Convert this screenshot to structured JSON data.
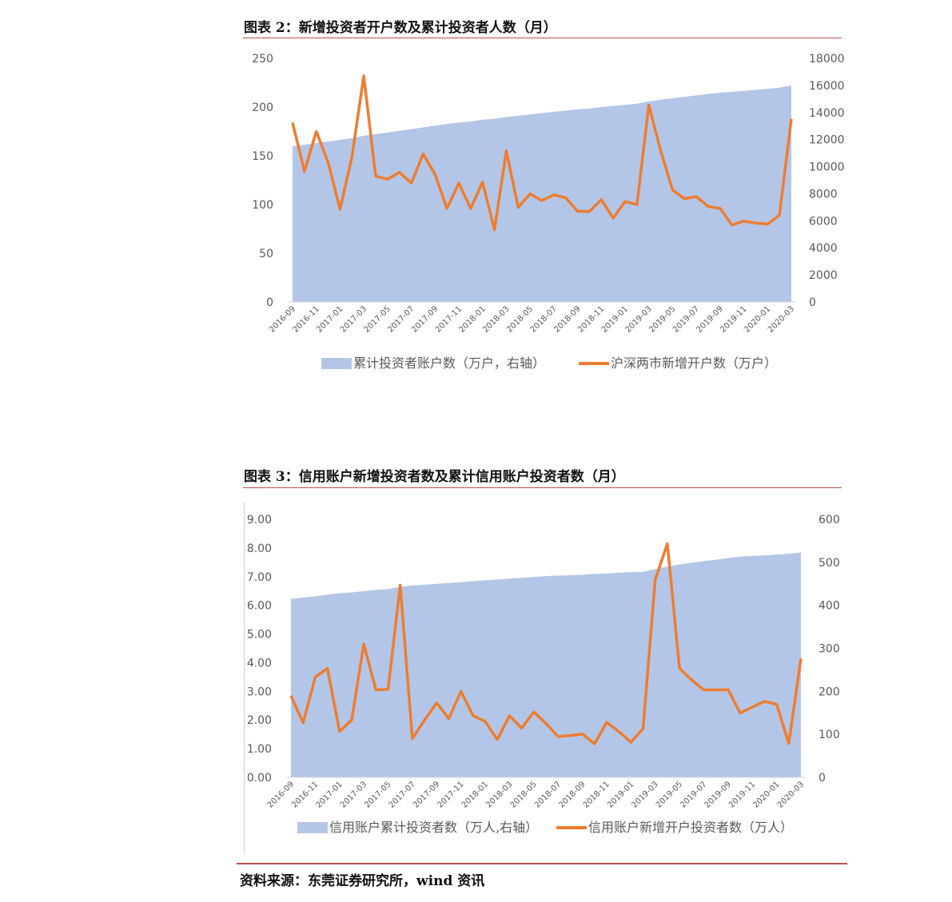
{
  "figure2": {
    "title": "图表 2：新增投资者开户数及累计投资者人数（月）"
  },
  "figure3": {
    "title": "图表 3：信用账户新增投资者数及累计信用账户投资者数（月）"
  },
  "source": "资料来源：东莞证券研究所，wind 资讯",
  "colors": {
    "area": "#b4c6e7",
    "line": "#ed7d31",
    "rule": "#c0504d",
    "axis_text": "#595959"
  },
  "chart_data": [
    {
      "type": "area+line",
      "categories": [
        "2016-09",
        "2016-10",
        "2016-11",
        "2016-12",
        "2017-01",
        "2017-02",
        "2017-03",
        "2017-04",
        "2017-05",
        "2017-06",
        "2017-07",
        "2017-08",
        "2017-09",
        "2017-10",
        "2017-11",
        "2017-12",
        "2018-01",
        "2018-02",
        "2018-03",
        "2018-04",
        "2018-05",
        "2018-06",
        "2018-07",
        "2018-08",
        "2018-09",
        "2018-10",
        "2018-11",
        "2018-12",
        "2019-01",
        "2019-02",
        "2019-03",
        "2019-04",
        "2019-05",
        "2019-06",
        "2019-07",
        "2019-08",
        "2019-09",
        "2019-10",
        "2019-11",
        "2019-12",
        "2020-01",
        "2020-02",
        "2020-03"
      ],
      "x_tick_labels": [
        "2016-09",
        "2016-11",
        "2017-01",
        "2017-03",
        "2017-05",
        "2017-07",
        "2017-09",
        "2017-11",
        "2018-01",
        "2018-03",
        "2018-05",
        "2018-07",
        "2018-09",
        "2018-11",
        "2019-01",
        "2019-03",
        "2019-05",
        "2019-07",
        "2019-09",
        "2019-11",
        "2020-01",
        "2020-03"
      ],
      "series": [
        {
          "name": "累计投资者账户数（万户，右轴）",
          "kind": "area",
          "axis": "right",
          "values": [
            11500,
            11620,
            11740,
            11860,
            11980,
            12100,
            12280,
            12400,
            12520,
            12640,
            12760,
            12900,
            13030,
            13150,
            13250,
            13340,
            13460,
            13540,
            13660,
            13760,
            13850,
            13950,
            14050,
            14140,
            14230,
            14300,
            14400,
            14480,
            14560,
            14650,
            14820,
            14950,
            15050,
            15160,
            15260,
            15370,
            15460,
            15530,
            15600,
            15670,
            15750,
            15840,
            16000
          ]
        },
        {
          "name": "沪深两市新增开户数（万户）",
          "kind": "line",
          "axis": "left",
          "values": [
            184,
            134,
            175,
            143,
            95,
            149,
            232,
            129,
            126,
            133,
            122,
            152,
            131,
            96,
            122,
            96,
            123,
            74,
            155,
            97,
            111,
            104,
            110,
            107,
            93,
            93,
            105,
            86,
            103,
            100,
            202,
            155,
            115,
            106,
            108,
            98,
            96,
            79,
            83,
            81,
            80,
            89,
            188
          ]
        }
      ],
      "y_left": {
        "min": 0,
        "max": 250,
        "ticks": [
          0,
          50,
          100,
          150,
          200,
          250
        ]
      },
      "y_right": {
        "min": 0,
        "max": 18000,
        "ticks": [
          0,
          2000,
          4000,
          6000,
          8000,
          10000,
          12000,
          14000,
          16000,
          18000
        ]
      },
      "legend_placement": "bottom"
    },
    {
      "type": "area+line",
      "categories": [
        "2016-09",
        "2016-10",
        "2016-11",
        "2016-12",
        "2017-01",
        "2017-02",
        "2017-03",
        "2017-04",
        "2017-05",
        "2017-06",
        "2017-07",
        "2017-08",
        "2017-09",
        "2017-10",
        "2017-11",
        "2017-12",
        "2018-01",
        "2018-02",
        "2018-03",
        "2018-04",
        "2018-05",
        "2018-06",
        "2018-07",
        "2018-08",
        "2018-09",
        "2018-10",
        "2018-11",
        "2018-12",
        "2019-01",
        "2019-02",
        "2019-03",
        "2019-04",
        "2019-05",
        "2019-06",
        "2019-07",
        "2019-08",
        "2019-09",
        "2019-10",
        "2019-11",
        "2019-12",
        "2020-01",
        "2020-02",
        "2020-03"
      ],
      "x_tick_labels": [
        "2016-09",
        "2016-11",
        "2017-01",
        "2017-03",
        "2017-05",
        "2017-07",
        "2017-09",
        "2017-11",
        "2018-01",
        "2018-03",
        "2018-05",
        "2018-07",
        "2018-09",
        "2018-11",
        "2019-01",
        "2019-03",
        "2019-05",
        "2019-07",
        "2019-09",
        "2019-11",
        "2020-01",
        "2020-03"
      ],
      "series": [
        {
          "name": "信用账户累计投资者数（万人,右轴）",
          "kind": "area",
          "axis": "right",
          "values": [
            415,
            418,
            421,
            425,
            428,
            430,
            433,
            436,
            438,
            443,
            446,
            448,
            450,
            452,
            454,
            456,
            458,
            460,
            462,
            464,
            466,
            468,
            469,
            470,
            471,
            473,
            474,
            476,
            477,
            478,
            484,
            490,
            495,
            499,
            503,
            506,
            510,
            513,
            515,
            516,
            518,
            520,
            523
          ]
        },
        {
          "name": "信用账户新增开户投资者数（万人）",
          "kind": "line",
          "axis": "left",
          "values": [
            2.85,
            1.9,
            3.5,
            3.8,
            1.6,
            2.0,
            4.65,
            3.05,
            3.07,
            6.7,
            1.35,
            2.0,
            2.6,
            2.05,
            3.0,
            2.15,
            1.95,
            1.32,
            2.15,
            1.72,
            2.28,
            1.88,
            1.42,
            1.46,
            1.51,
            1.17,
            1.92,
            1.6,
            1.23,
            1.7,
            6.9,
            8.15,
            3.8,
            3.4,
            3.05,
            3.05,
            3.06,
            2.25,
            2.45,
            2.65,
            2.55,
            1.18,
            4.15
          ]
        }
      ],
      "y_left": {
        "min": 0,
        "max": 9,
        "ticks": [
          "0.00",
          "1.00",
          "2.00",
          "3.00",
          "4.00",
          "5.00",
          "6.00",
          "7.00",
          "8.00",
          "9.00"
        ]
      },
      "y_right": {
        "min": 0,
        "max": 600,
        "ticks": [
          0,
          100,
          200,
          300,
          400,
          500,
          600
        ]
      },
      "legend_placement": "bottom"
    }
  ]
}
